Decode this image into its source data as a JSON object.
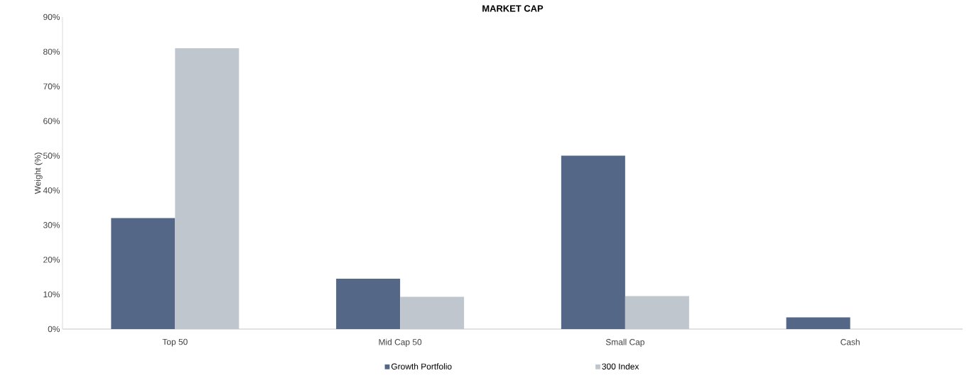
{
  "chart_data": {
    "type": "bar",
    "title": "MARKET CAP",
    "ylabel": "Weight (%)",
    "categories": [
      "Top 50",
      "Mid Cap 50",
      "Small Cap",
      "Cash"
    ],
    "series": [
      {
        "name": "Growth Portfolio",
        "color": "#556787",
        "values": [
          32,
          14.5,
          50,
          3.4
        ]
      },
      {
        "name": "300 Index",
        "color": "#bfc6ce",
        "values": [
          81,
          9.3,
          9.5,
          0
        ]
      }
    ],
    "ylim": [
      0,
      90
    ],
    "yticks": [
      {
        "value": 0,
        "label": "0%"
      },
      {
        "value": 10,
        "label": "10%"
      },
      {
        "value": 20,
        "label": "20%"
      },
      {
        "value": 30,
        "label": "30%"
      },
      {
        "value": 40,
        "label": "40%"
      },
      {
        "value": 50,
        "label": "50%"
      },
      {
        "value": 60,
        "label": "60%"
      },
      {
        "value": 70,
        "label": "70%"
      },
      {
        "value": 80,
        "label": "80%"
      },
      {
        "value": 90,
        "label": "90%"
      }
    ],
    "grid": false,
    "legend": "bottom"
  }
}
